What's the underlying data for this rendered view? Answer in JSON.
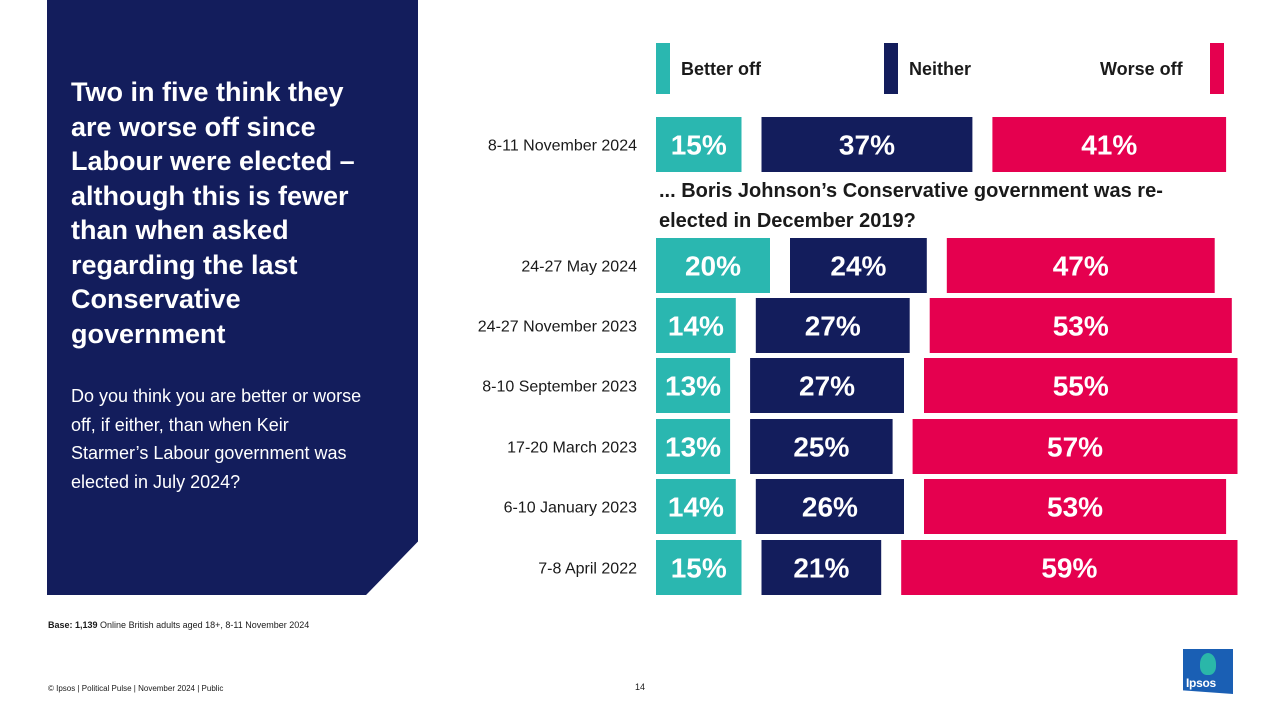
{
  "panel": {
    "title": "Two in five think they are worse off since Labour were elected – although this is fewer than when asked regarding the last Conservative government",
    "question": "Do you think you are better or worse off, if either, than when Keir Starmer’s Labour government was elected in July 2024?"
  },
  "legend": {
    "better": "Better off",
    "neither": "Neither",
    "worse": "Worse off"
  },
  "subtitle": "... Boris Johnson’s Conservative government was re-elected in December 2019?",
  "colors": {
    "better": "#2ab7b0",
    "neither": "#131d5c",
    "worse": "#e5004f",
    "panel": "#131d5c"
  },
  "chart_data": {
    "type": "bar",
    "orientation": "horizontal-stacked",
    "categories": [
      "8-11 November 2024",
      "24-27 May 2024",
      "24-27 November 2023",
      "8-10 September 2023",
      "17-20 March 2023",
      "6-10 January 2023",
      "7-8 April 2022"
    ],
    "series": [
      {
        "name": "Better off",
        "values": [
          15,
          20,
          14,
          13,
          13,
          14,
          15
        ]
      },
      {
        "name": "Neither",
        "values": [
          37,
          24,
          27,
          27,
          25,
          26,
          21
        ]
      },
      {
        "name": "Worse off",
        "values": [
          41,
          47,
          53,
          55,
          57,
          53,
          59
        ]
      }
    ],
    "data_labels": [
      [
        "15%",
        "37%",
        "41%"
      ],
      [
        "20%",
        "24%",
        "47%"
      ],
      [
        "14%",
        "27%",
        "53%"
      ],
      [
        "13%",
        "27%",
        "55%"
      ],
      [
        "13%",
        "25%",
        "57%"
      ],
      [
        "14%",
        "26%",
        "53%"
      ],
      [
        "15%",
        "21%",
        "59%"
      ]
    ],
    "unit": "%",
    "xlim": [
      0,
      100
    ]
  },
  "base": {
    "label": "Base: 1,139",
    "text": " Online British adults aged 18+,  8-11 November 2024"
  },
  "footer": {
    "text": "© Ipsos | Political Pulse | November 2024 | Public",
    "page": "14"
  },
  "logo": {
    "text": "Ipsos"
  }
}
